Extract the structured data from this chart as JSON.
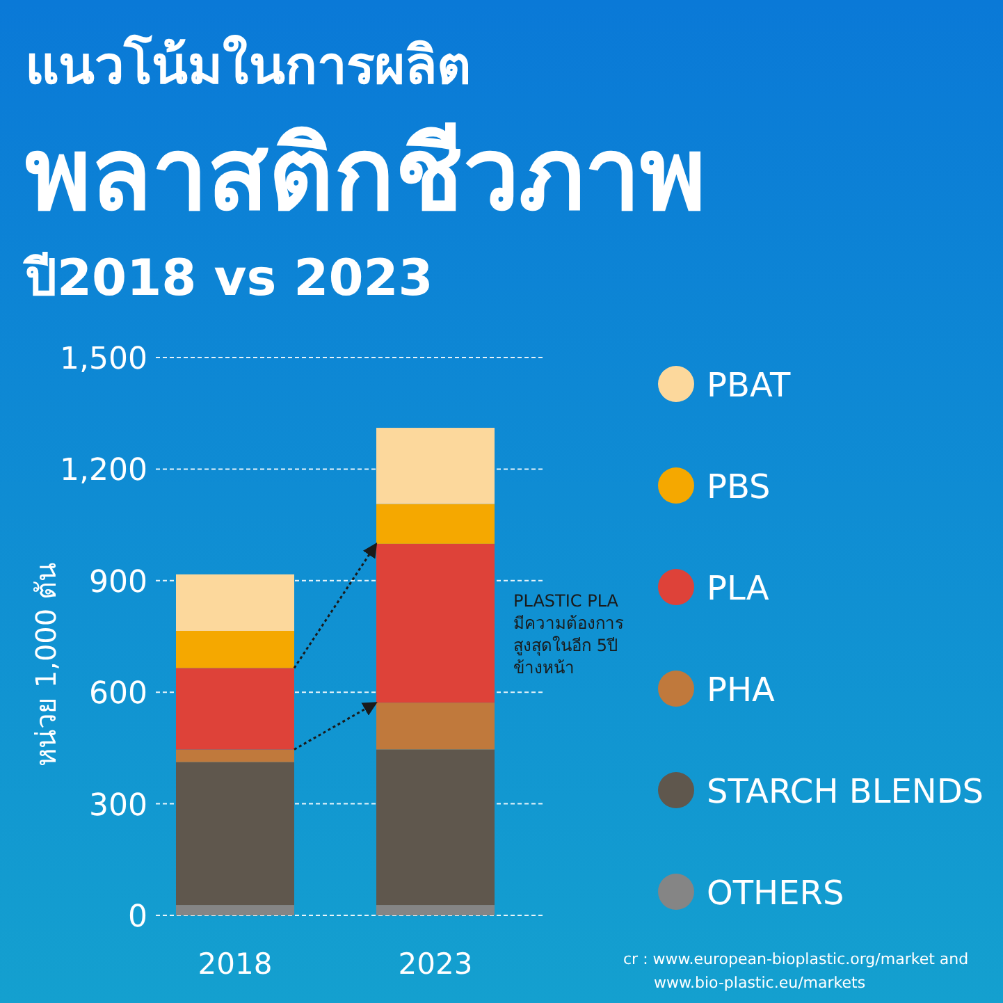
{
  "chart_data": {
    "type": "bar",
    "stacked": true,
    "title": "แนวโน้มในการผลิต\nพลาสติกชีวภาพ",
    "subtitle": "ปี2018 vs 2023",
    "ylabel": "หน่วย 1,000 ตัน",
    "categories": [
      "2018",
      "2023"
    ],
    "series": [
      {
        "name": "OTHERS",
        "color": "#858585",
        "values": [
          28,
          28
        ]
      },
      {
        "name": "STARCH BLENDS",
        "color": "#5f574d",
        "values": [
          384,
          418
        ]
      },
      {
        "name": "PHA",
        "color": "#c0793c",
        "values": [
          34,
          126
        ]
      },
      {
        "name": "PLA",
        "color": "#de4239",
        "values": [
          219,
          427
        ]
      },
      {
        "name": "PBS",
        "color": "#f5a800",
        "values": [
          100,
          107
        ]
      },
      {
        "name": "PBAT",
        "color": "#fcd89c",
        "values": [
          152,
          205
        ]
      }
    ],
    "ylim": [
      0,
      1500
    ],
    "yticks": [
      0,
      300,
      600,
      900,
      {
        "value": 1200,
        "label": "1,200"
      },
      {
        "value": 1500,
        "label": "1,500"
      }
    ],
    "grid": "y",
    "legend": "right",
    "annotations": [
      "PLASTIC PLA\nมีความต้องการ\nสูงสุดในอีก 5ปี\nข้างหน้า",
      "cr : www.european-bioplastic.org/market and\nwww.bio-plastic.eu/markets"
    ]
  }
}
